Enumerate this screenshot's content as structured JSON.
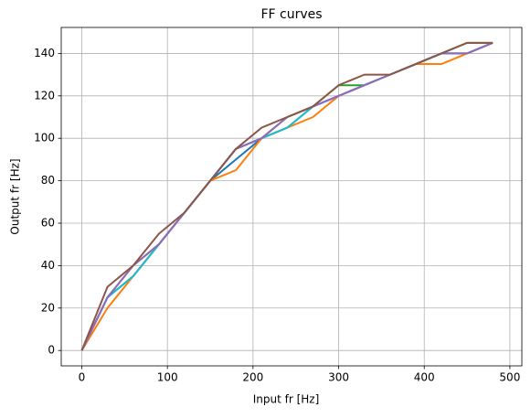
{
  "chart_data": {
    "type": "line",
    "title": "FF curves",
    "x_label": "Input fr [Hz]",
    "y_label": "Output fr [Hz]",
    "x": [
      0,
      30,
      60,
      90,
      120,
      150,
      180,
      210,
      240,
      270,
      300,
      330,
      360,
      390,
      420,
      450,
      480
    ],
    "series": [
      {
        "color": "#1f77b4",
        "values": [
          0,
          25,
          35,
          50,
          65,
          80,
          90,
          100,
          105,
          115,
          120,
          125,
          130,
          135,
          140,
          140,
          145
        ]
      },
      {
        "color": "#ff7f0e",
        "values": [
          0,
          20,
          35,
          50,
          65,
          80,
          85,
          100,
          105,
          110,
          120,
          125,
          130,
          135,
          135,
          140,
          145
        ]
      },
      {
        "color": "#2ca02c",
        "values": [
          0,
          25,
          40,
          50,
          65,
          80,
          95,
          100,
          110,
          115,
          125,
          125,
          130,
          135,
          140,
          145,
          145
        ]
      },
      {
        "color": "#17becf",
        "values": [
          0,
          25,
          35,
          50,
          65,
          80,
          95,
          100,
          105,
          115,
          120,
          125,
          130,
          135,
          140,
          140,
          145
        ]
      },
      {
        "color": "#9467bd",
        "values": [
          0,
          25,
          40,
          50,
          65,
          80,
          95,
          100,
          110,
          115,
          120,
          125,
          130,
          135,
          140,
          140,
          145
        ]
      },
      {
        "color": "#8c564b",
        "values": [
          0,
          30,
          40,
          55,
          65,
          80,
          95,
          105,
          110,
          115,
          125,
          130,
          130,
          135,
          140,
          145,
          145
        ]
      }
    ],
    "xlim": [
      -24,
      514
    ],
    "ylim": [
      -7.25,
      152.25
    ],
    "xticks": [
      0,
      100,
      200,
      300,
      400,
      500
    ],
    "yticks": [
      0,
      20,
      40,
      60,
      80,
      100,
      120,
      140
    ],
    "grid": true
  }
}
